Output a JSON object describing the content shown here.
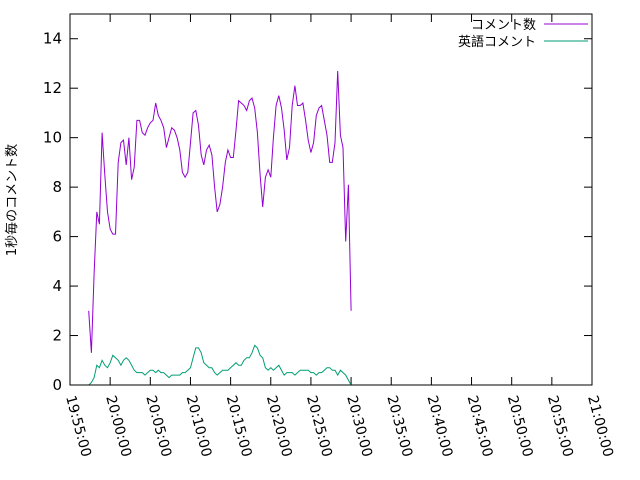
{
  "chart_data": {
    "type": "line",
    "title": "",
    "xlabel": "",
    "ylabel": "1秒毎のコメント数",
    "xlim": [
      "19:55:00",
      "21:00:00"
    ],
    "ylim": [
      0,
      15
    ],
    "grid": false,
    "legend_position": "top-right",
    "x_ticks": [
      "19:55:00",
      "20:00:00",
      "20:05:00",
      "20:10:00",
      "20:15:00",
      "20:20:00",
      "20:25:00",
      "20:30:00",
      "20:35:00",
      "20:40:00",
      "20:45:00",
      "20:50:00",
      "20:55:00",
      "21:00:00"
    ],
    "y_ticks": [
      "0",
      "2",
      "4",
      "6",
      "8",
      "10",
      "12",
      "14"
    ],
    "series": [
      {
        "name": "コメント数",
        "color": "#9400d3",
        "points": [
          [
            "19:57:20",
            3.0
          ],
          [
            "19:57:40",
            1.3
          ],
          [
            "19:58:00",
            4.5
          ],
          [
            "19:58:20",
            7.0
          ],
          [
            "19:58:40",
            6.5
          ],
          [
            "19:59:00",
            10.2
          ],
          [
            "19:59:20",
            8.5
          ],
          [
            "19:59:40",
            7.0
          ],
          [
            "20:00:00",
            6.3
          ],
          [
            "20:00:20",
            6.1
          ],
          [
            "20:00:40",
            6.1
          ],
          [
            "20:01:00",
            9.0
          ],
          [
            "20:01:20",
            9.8
          ],
          [
            "20:01:40",
            9.9
          ],
          [
            "20:02:00",
            8.9
          ],
          [
            "20:02:20",
            10.0
          ],
          [
            "20:02:40",
            8.3
          ],
          [
            "20:03:00",
            8.8
          ],
          [
            "20:03:20",
            10.7
          ],
          [
            "20:03:40",
            10.7
          ],
          [
            "20:04:00",
            10.2
          ],
          [
            "20:04:20",
            10.1
          ],
          [
            "20:04:40",
            10.4
          ],
          [
            "20:05:00",
            10.6
          ],
          [
            "20:05:20",
            10.7
          ],
          [
            "20:05:40",
            11.4
          ],
          [
            "20:06:00",
            10.9
          ],
          [
            "20:06:20",
            10.7
          ],
          [
            "20:06:40",
            10.4
          ],
          [
            "20:07:00",
            9.6
          ],
          [
            "20:07:20",
            10.0
          ],
          [
            "20:07:40",
            10.4
          ],
          [
            "20:08:00",
            10.3
          ],
          [
            "20:08:20",
            10.0
          ],
          [
            "20:08:40",
            9.5
          ],
          [
            "20:09:00",
            8.6
          ],
          [
            "20:09:20",
            8.4
          ],
          [
            "20:09:40",
            8.6
          ],
          [
            "20:10:00",
            9.8
          ],
          [
            "20:10:20",
            11.0
          ],
          [
            "20:10:40",
            11.1
          ],
          [
            "20:11:00",
            10.5
          ],
          [
            "20:11:20",
            9.3
          ],
          [
            "20:11:40",
            8.9
          ],
          [
            "20:12:00",
            9.5
          ],
          [
            "20:12:20",
            9.7
          ],
          [
            "20:12:40",
            9.3
          ],
          [
            "20:13:00",
            8.0
          ],
          [
            "20:13:20",
            7.0
          ],
          [
            "20:13:40",
            7.3
          ],
          [
            "20:14:00",
            8.0
          ],
          [
            "20:14:20",
            9.0
          ],
          [
            "20:14:40",
            9.5
          ],
          [
            "20:15:00",
            9.2
          ],
          [
            "20:15:20",
            9.2
          ],
          [
            "20:15:40",
            10.3
          ],
          [
            "20:16:00",
            11.5
          ],
          [
            "20:16:20",
            11.4
          ],
          [
            "20:16:40",
            11.3
          ],
          [
            "20:17:00",
            11.1
          ],
          [
            "20:17:20",
            11.5
          ],
          [
            "20:17:40",
            11.6
          ],
          [
            "20:18:00",
            11.2
          ],
          [
            "20:18:20",
            10.2
          ],
          [
            "20:18:40",
            8.5
          ],
          [
            "20:19:00",
            7.2
          ],
          [
            "20:19:20",
            8.4
          ],
          [
            "20:19:40",
            8.7
          ],
          [
            "20:20:00",
            8.4
          ],
          [
            "20:20:20",
            10.0
          ],
          [
            "20:20:40",
            11.3
          ],
          [
            "20:21:00",
            11.7
          ],
          [
            "20:21:20",
            11.2
          ],
          [
            "20:21:40",
            10.3
          ],
          [
            "20:22:00",
            9.1
          ],
          [
            "20:22:20",
            9.6
          ],
          [
            "20:22:40",
            11.3
          ],
          [
            "20:23:00",
            12.1
          ],
          [
            "20:23:20",
            11.3
          ],
          [
            "20:23:40",
            11.3
          ],
          [
            "20:24:00",
            11.4
          ],
          [
            "20:24:20",
            10.7
          ],
          [
            "20:24:40",
            9.9
          ],
          [
            "20:25:00",
            9.4
          ],
          [
            "20:25:20",
            9.8
          ],
          [
            "20:25:40",
            10.9
          ],
          [
            "20:26:00",
            11.2
          ],
          [
            "20:26:20",
            11.3
          ],
          [
            "20:26:40",
            10.7
          ],
          [
            "20:27:00",
            10.1
          ],
          [
            "20:27:20",
            9.0
          ],
          [
            "20:27:40",
            9.0
          ],
          [
            "20:28:00",
            9.8
          ],
          [
            "20:28:20",
            12.7
          ],
          [
            "20:28:40",
            10.1
          ],
          [
            "20:29:00",
            9.6
          ],
          [
            "20:29:20",
            5.8
          ],
          [
            "20:29:40",
            8.1
          ],
          [
            "20:30:00",
            3.0
          ]
        ]
      },
      {
        "name": "英語コメント",
        "color": "#009e73",
        "points": [
          [
            "19:57:20",
            0.0
          ],
          [
            "19:57:40",
            0.1
          ],
          [
            "19:58:00",
            0.3
          ],
          [
            "19:58:20",
            0.8
          ],
          [
            "19:58:40",
            0.7
          ],
          [
            "19:59:00",
            1.0
          ],
          [
            "19:59:20",
            0.8
          ],
          [
            "19:59:40",
            0.7
          ],
          [
            "20:00:00",
            0.9
          ],
          [
            "20:00:20",
            1.2
          ],
          [
            "20:00:40",
            1.1
          ],
          [
            "20:01:00",
            1.0
          ],
          [
            "20:01:20",
            0.8
          ],
          [
            "20:01:40",
            1.0
          ],
          [
            "20:02:00",
            1.1
          ],
          [
            "20:02:20",
            1.0
          ],
          [
            "20:02:40",
            0.8
          ],
          [
            "20:03:00",
            0.6
          ],
          [
            "20:03:20",
            0.5
          ],
          [
            "20:03:40",
            0.5
          ],
          [
            "20:04:00",
            0.5
          ],
          [
            "20:04:20",
            0.4
          ],
          [
            "20:04:40",
            0.5
          ],
          [
            "20:05:00",
            0.6
          ],
          [
            "20:05:20",
            0.6
          ],
          [
            "20:05:40",
            0.5
          ],
          [
            "20:06:00",
            0.6
          ],
          [
            "20:06:20",
            0.5
          ],
          [
            "20:06:40",
            0.5
          ],
          [
            "20:07:00",
            0.4
          ],
          [
            "20:07:20",
            0.3
          ],
          [
            "20:07:40",
            0.4
          ],
          [
            "20:08:00",
            0.4
          ],
          [
            "20:08:20",
            0.4
          ],
          [
            "20:08:40",
            0.4
          ],
          [
            "20:09:00",
            0.5
          ],
          [
            "20:09:20",
            0.5
          ],
          [
            "20:09:40",
            0.6
          ],
          [
            "20:10:00",
            0.7
          ],
          [
            "20:10:20",
            1.1
          ],
          [
            "20:10:40",
            1.5
          ],
          [
            "20:11:00",
            1.5
          ],
          [
            "20:11:20",
            1.3
          ],
          [
            "20:11:40",
            0.9
          ],
          [
            "20:12:00",
            0.8
          ],
          [
            "20:12:20",
            0.7
          ],
          [
            "20:12:40",
            0.7
          ],
          [
            "20:13:00",
            0.5
          ],
          [
            "20:13:20",
            0.4
          ],
          [
            "20:13:40",
            0.5
          ],
          [
            "20:14:00",
            0.6
          ],
          [
            "20:14:20",
            0.6
          ],
          [
            "20:14:40",
            0.6
          ],
          [
            "20:15:00",
            0.7
          ],
          [
            "20:15:20",
            0.8
          ],
          [
            "20:15:40",
            0.9
          ],
          [
            "20:16:00",
            0.8
          ],
          [
            "20:16:20",
            0.8
          ],
          [
            "20:16:40",
            1.0
          ],
          [
            "20:17:00",
            1.1
          ],
          [
            "20:17:20",
            1.1
          ],
          [
            "20:17:40",
            1.3
          ],
          [
            "20:18:00",
            1.6
          ],
          [
            "20:18:20",
            1.5
          ],
          [
            "20:18:40",
            1.2
          ],
          [
            "20:19:00",
            1.1
          ],
          [
            "20:19:20",
            0.7
          ],
          [
            "20:19:40",
            0.6
          ],
          [
            "20:20:00",
            0.7
          ],
          [
            "20:20:20",
            0.6
          ],
          [
            "20:20:40",
            0.7
          ],
          [
            "20:21:00",
            0.8
          ],
          [
            "20:21:20",
            0.6
          ],
          [
            "20:21:40",
            0.4
          ],
          [
            "20:22:00",
            0.5
          ],
          [
            "20:22:20",
            0.5
          ],
          [
            "20:22:40",
            0.5
          ],
          [
            "20:23:00",
            0.4
          ],
          [
            "20:23:20",
            0.5
          ],
          [
            "20:23:40",
            0.6
          ],
          [
            "20:24:00",
            0.6
          ],
          [
            "20:24:20",
            0.6
          ],
          [
            "20:24:40",
            0.6
          ],
          [
            "20:25:00",
            0.5
          ],
          [
            "20:25:20",
            0.5
          ],
          [
            "20:25:40",
            0.4
          ],
          [
            "20:26:00",
            0.5
          ],
          [
            "20:26:20",
            0.5
          ],
          [
            "20:26:40",
            0.6
          ],
          [
            "20:27:00",
            0.7
          ],
          [
            "20:27:20",
            0.7
          ],
          [
            "20:27:40",
            0.6
          ],
          [
            "20:28:00",
            0.6
          ],
          [
            "20:28:20",
            0.4
          ],
          [
            "20:28:40",
            0.6
          ],
          [
            "20:29:00",
            0.5
          ],
          [
            "20:29:20",
            0.4
          ],
          [
            "20:29:40",
            0.2
          ],
          [
            "20:30:00",
            0.0
          ]
        ]
      }
    ]
  }
}
